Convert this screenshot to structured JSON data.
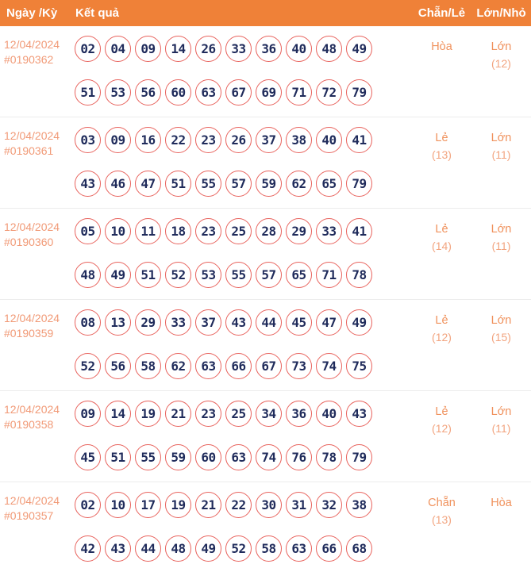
{
  "header": {
    "col_date": "Ngày /Kỳ",
    "col_result": "Kết quả",
    "col_even_odd": "Chẵn/Lẻ",
    "col_big_small": "Lớn/Nhỏ"
  },
  "colors": {
    "header_bg": "#ef8138",
    "header_text": "#ffffff",
    "date_text": "#f19a77",
    "ball_border": "#e8635d",
    "ball_number": "#1f2b5b",
    "value_word": "#f0925d",
    "value_count": "#f2a47f",
    "divider": "#ececec"
  },
  "rows": [
    {
      "date": "12/04/2024",
      "draw_id": "#0190362",
      "numbers_line1": [
        "02",
        "04",
        "09",
        "14",
        "26",
        "33",
        "36",
        "40",
        "48",
        "49"
      ],
      "numbers_line2": [
        "51",
        "53",
        "56",
        "60",
        "63",
        "67",
        "69",
        "71",
        "72",
        "79"
      ],
      "even_odd": {
        "label": "Hòa",
        "count": ""
      },
      "big_small": {
        "label": "Lớn",
        "count": "(12)"
      }
    },
    {
      "date": "12/04/2024",
      "draw_id": "#0190361",
      "numbers_line1": [
        "03",
        "09",
        "16",
        "22",
        "23",
        "26",
        "37",
        "38",
        "40",
        "41"
      ],
      "numbers_line2": [
        "43",
        "46",
        "47",
        "51",
        "55",
        "57",
        "59",
        "62",
        "65",
        "79"
      ],
      "even_odd": {
        "label": "Lẻ",
        "count": "(13)"
      },
      "big_small": {
        "label": "Lớn",
        "count": "(11)"
      }
    },
    {
      "date": "12/04/2024",
      "draw_id": "#0190360",
      "numbers_line1": [
        "05",
        "10",
        "11",
        "18",
        "23",
        "25",
        "28",
        "29",
        "33",
        "41"
      ],
      "numbers_line2": [
        "48",
        "49",
        "51",
        "52",
        "53",
        "55",
        "57",
        "65",
        "71",
        "78"
      ],
      "even_odd": {
        "label": "Lẻ",
        "count": "(14)"
      },
      "big_small": {
        "label": "Lớn",
        "count": "(11)"
      }
    },
    {
      "date": "12/04/2024",
      "draw_id": "#0190359",
      "numbers_line1": [
        "08",
        "13",
        "29",
        "33",
        "37",
        "43",
        "44",
        "45",
        "47",
        "49"
      ],
      "numbers_line2": [
        "52",
        "56",
        "58",
        "62",
        "63",
        "66",
        "67",
        "73",
        "74",
        "75"
      ],
      "even_odd": {
        "label": "Lẻ",
        "count": "(12)"
      },
      "big_small": {
        "label": "Lớn",
        "count": "(15)"
      }
    },
    {
      "date": "12/04/2024",
      "draw_id": "#0190358",
      "numbers_line1": [
        "09",
        "14",
        "19",
        "21",
        "23",
        "25",
        "34",
        "36",
        "40",
        "43"
      ],
      "numbers_line2": [
        "45",
        "51",
        "55",
        "59",
        "60",
        "63",
        "74",
        "76",
        "78",
        "79"
      ],
      "even_odd": {
        "label": "Lẻ",
        "count": "(12)"
      },
      "big_small": {
        "label": "Lớn",
        "count": "(11)"
      }
    },
    {
      "date": "12/04/2024",
      "draw_id": "#0190357",
      "numbers_line1": [
        "02",
        "10",
        "17",
        "19",
        "21",
        "22",
        "30",
        "31",
        "32",
        "38"
      ],
      "numbers_line2": [
        "42",
        "43",
        "44",
        "48",
        "49",
        "52",
        "58",
        "63",
        "66",
        "68"
      ],
      "even_odd": {
        "label": "Chẵn",
        "count": "(13)"
      },
      "big_small": {
        "label": "Hòa",
        "count": ""
      }
    }
  ]
}
